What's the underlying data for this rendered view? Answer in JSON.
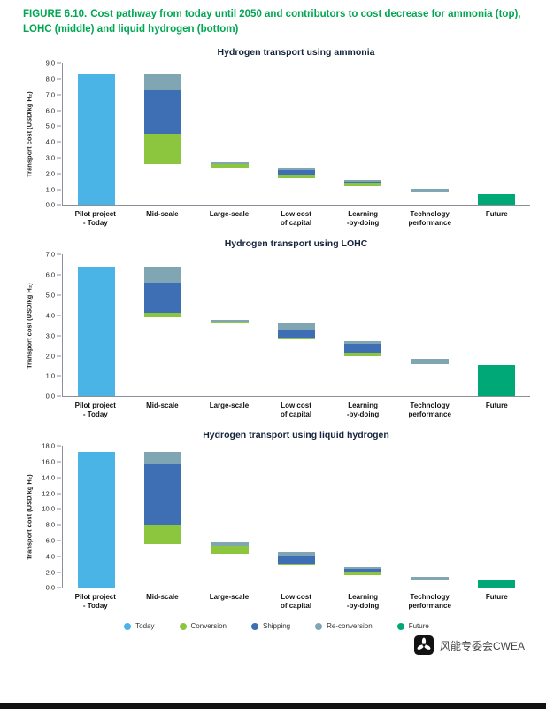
{
  "page": {
    "figure_label": "FIGURE 6.10.",
    "figure_title": "Cost pathway from today until 2050 and contributors to cost decrease for ammonia (top), LOHC (middle) and liquid hydrogen (bottom)"
  },
  "colors": {
    "heading": "#00a651",
    "chart_title": "#14233c",
    "axis_text": "#222222",
    "axis_line": "#8a8f98"
  },
  "legend": [
    {
      "label": "Today",
      "color": "#4ab4e6"
    },
    {
      "label": "Conversion",
      "color": "#8cc63e"
    },
    {
      "label": "Shipping",
      "color": "#3e6eb4"
    },
    {
      "label": "Re-conversion",
      "color": "#7fa6b2"
    },
    {
      "label": "Future",
      "color": "#00a878"
    }
  ],
  "watermark": {
    "text": "风能专委会CWEA"
  },
  "chart_data": [
    {
      "type": "bar",
      "variant": "floating-stacked-waterfall",
      "title": "Hydrogen transport using ammonia",
      "ylabel": "Transport cost (USD/kg H₂)",
      "ylim": [
        0,
        9
      ],
      "ytick_step": 1,
      "grid": false,
      "legend_position": "bottom-shared",
      "categories": [
        "Pilot project\n- Today",
        "Mid-scale",
        "Large-scale",
        "Low cost\nof capital",
        "Learning\n-by-doing",
        "Technology\nperformance",
        "Future"
      ],
      "bars": [
        {
          "category": "Pilot project - Today",
          "segments": [
            {
              "series": "Today",
              "from": 0,
              "to": 8.3
            }
          ]
        },
        {
          "category": "Mid-scale",
          "segments": [
            {
              "series": "Conversion",
              "from": 2.6,
              "to": 4.5
            },
            {
              "series": "Shipping",
              "from": 4.5,
              "to": 7.3
            },
            {
              "series": "Re-conversion",
              "from": 7.3,
              "to": 8.3
            }
          ]
        },
        {
          "category": "Large-scale",
          "segments": [
            {
              "series": "Conversion",
              "from": 2.35,
              "to": 2.6
            },
            {
              "series": "Re-conversion",
              "from": 2.6,
              "to": 2.7
            }
          ]
        },
        {
          "category": "Low cost of capital",
          "segments": [
            {
              "series": "Conversion",
              "from": 1.7,
              "to": 1.9
            },
            {
              "series": "Shipping",
              "from": 1.9,
              "to": 2.2
            },
            {
              "series": "Re-conversion",
              "from": 2.2,
              "to": 2.35
            }
          ]
        },
        {
          "category": "Learning -by-doing",
          "segments": [
            {
              "series": "Conversion",
              "from": 1.2,
              "to": 1.35
            },
            {
              "series": "Shipping",
              "from": 1.35,
              "to": 1.5
            },
            {
              "series": "Re-conversion",
              "from": 1.5,
              "to": 1.6
            }
          ]
        },
        {
          "category": "Technology performance",
          "segments": [
            {
              "series": "Re-conversion",
              "from": 0.8,
              "to": 1.05
            }
          ]
        },
        {
          "category": "Future",
          "segments": [
            {
              "series": "Future",
              "from": 0,
              "to": 0.7
            }
          ]
        }
      ]
    },
    {
      "type": "bar",
      "variant": "floating-stacked-waterfall",
      "title": "Hydrogen transport using LOHC",
      "ylabel": "Transport cost (USD/kg H₂)",
      "ylim": [
        0,
        7
      ],
      "ytick_step": 1,
      "grid": false,
      "legend_position": "bottom-shared",
      "categories": [
        "Pilot project\n- Today",
        "Mid-scale",
        "Large-scale",
        "Low cost\nof capital",
        "Learning\n-by-doing",
        "Technology\nperformance",
        "Future"
      ],
      "bars": [
        {
          "category": "Pilot project - Today",
          "segments": [
            {
              "series": "Today",
              "from": 0,
              "to": 6.4
            }
          ]
        },
        {
          "category": "Mid-scale",
          "segments": [
            {
              "series": "Conversion",
              "from": 3.9,
              "to": 4.15
            },
            {
              "series": "Shipping",
              "from": 4.15,
              "to": 5.6
            },
            {
              "series": "Re-conversion",
              "from": 5.6,
              "to": 6.4
            }
          ]
        },
        {
          "category": "Large-scale",
          "segments": [
            {
              "series": "Conversion",
              "from": 3.6,
              "to": 3.68
            },
            {
              "series": "Re-conversion",
              "from": 3.68,
              "to": 3.78
            }
          ]
        },
        {
          "category": "Low cost of capital",
          "segments": [
            {
              "series": "Conversion",
              "from": 2.8,
              "to": 2.92
            },
            {
              "series": "Shipping",
              "from": 2.92,
              "to": 3.3
            },
            {
              "series": "Re-conversion",
              "from": 3.3,
              "to": 3.6
            }
          ]
        },
        {
          "category": "Learning -by-doing",
          "segments": [
            {
              "series": "Conversion",
              "from": 2.0,
              "to": 2.15
            },
            {
              "series": "Shipping",
              "from": 2.15,
              "to": 2.6
            },
            {
              "series": "Re-conversion",
              "from": 2.6,
              "to": 2.72
            }
          ]
        },
        {
          "category": "Technology performance",
          "segments": [
            {
              "series": "Re-conversion",
              "from": 1.6,
              "to": 1.85
            }
          ]
        },
        {
          "category": "Future",
          "segments": [
            {
              "series": "Future",
              "from": 0,
              "to": 1.55
            }
          ]
        }
      ]
    },
    {
      "type": "bar",
      "variant": "floating-stacked-waterfall",
      "title": "Hydrogen transport using liquid hydrogen",
      "ylabel": "Transport cost (USD/kg H₂)",
      "ylim": [
        0,
        18
      ],
      "ytick_step": 2,
      "grid": false,
      "legend_position": "bottom-shared",
      "categories": [
        "Pilot project\n- Today",
        "Mid-scale",
        "Large-scale",
        "Low cost\nof capital",
        "Learning\n-by-doing",
        "Technology\nperformance",
        "Future"
      ],
      "bars": [
        {
          "category": "Pilot project - Today",
          "segments": [
            {
              "series": "Today",
              "from": 0,
              "to": 17.3
            }
          ]
        },
        {
          "category": "Mid-scale",
          "segments": [
            {
              "series": "Conversion",
              "from": 5.5,
              "to": 8.0
            },
            {
              "series": "Shipping",
              "from": 8.0,
              "to": 15.8
            },
            {
              "series": "Re-conversion",
              "from": 15.8,
              "to": 17.3
            }
          ]
        },
        {
          "category": "Large-scale",
          "segments": [
            {
              "series": "Conversion",
              "from": 4.3,
              "to": 5.3
            },
            {
              "series": "Re-conversion",
              "from": 5.3,
              "to": 5.8
            }
          ]
        },
        {
          "category": "Low cost of capital",
          "segments": [
            {
              "series": "Conversion",
              "from": 2.8,
              "to": 3.1
            },
            {
              "series": "Shipping",
              "from": 3.1,
              "to": 4.1
            },
            {
              "series": "Re-conversion",
              "from": 4.1,
              "to": 4.5
            }
          ]
        },
        {
          "category": "Learning -by-doing",
          "segments": [
            {
              "series": "Conversion",
              "from": 1.6,
              "to": 2.1
            },
            {
              "series": "Shipping",
              "from": 2.1,
              "to": 2.4
            },
            {
              "series": "Re-conversion",
              "from": 2.4,
              "to": 2.6
            }
          ]
        },
        {
          "category": "Technology performance",
          "segments": [
            {
              "series": "Re-conversion",
              "from": 1.1,
              "to": 1.35
            }
          ]
        },
        {
          "category": "Future",
          "segments": [
            {
              "series": "Future",
              "from": 0,
              "to": 0.9
            }
          ]
        }
      ]
    }
  ]
}
